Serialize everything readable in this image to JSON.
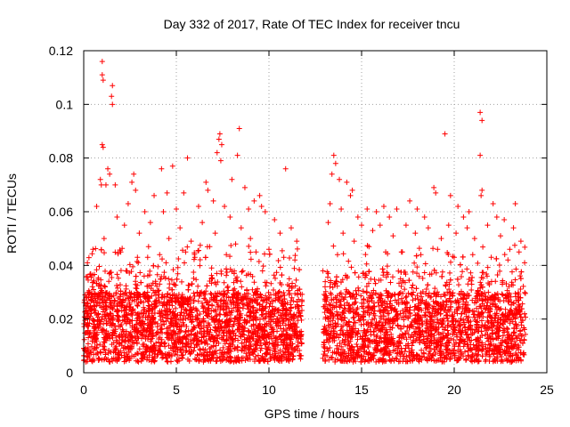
{
  "chart_data": {
    "type": "scatter",
    "title": "Day 332 of 2017, Rate Of TEC Index for receiver tncu",
    "xlabel": "GPS time / hours",
    "ylabel": "ROTI / TECUs",
    "xlim": [
      0,
      25
    ],
    "ylim": [
      0,
      0.12
    ],
    "xticks": [
      0,
      5,
      10,
      15,
      20,
      25
    ],
    "xtick_labels": [
      "0",
      "5",
      "10",
      "15",
      "20",
      "25"
    ],
    "yticks": [
      0,
      0.02,
      0.04,
      0.06,
      0.08,
      0.1,
      0.12
    ],
    "ytick_labels": [
      "0",
      "0.02",
      "0.04",
      "0.06",
      "0.08",
      "0.1",
      "0.12"
    ],
    "grid": true,
    "marker": "+",
    "color": "#ff0000",
    "data_gap_hours": [
      11.8,
      12.9
    ],
    "points": [
      [
        1.0,
        0.116
      ],
      [
        1.0,
        0.111
      ],
      [
        1.05,
        0.109
      ],
      [
        1.55,
        0.107
      ],
      [
        1.5,
        0.103
      ],
      [
        1.55,
        0.1
      ],
      [
        1.0,
        0.085
      ],
      [
        1.05,
        0.084
      ],
      [
        7.35,
        0.089
      ],
      [
        7.3,
        0.087
      ],
      [
        8.4,
        0.091
      ],
      [
        7.45,
        0.085
      ],
      [
        7.2,
        0.082
      ],
      [
        7.4,
        0.079
      ],
      [
        8.3,
        0.081
      ],
      [
        5.6,
        0.08
      ],
      [
        4.2,
        0.076
      ],
      [
        4.8,
        0.077
      ],
      [
        10.9,
        0.076
      ],
      [
        1.3,
        0.076
      ],
      [
        1.4,
        0.074
      ],
      [
        2.7,
        0.074
      ],
      [
        2.6,
        0.071
      ],
      [
        1.2,
        0.07
      ],
      [
        0.9,
        0.072
      ],
      [
        0.95,
        0.07
      ],
      [
        1.7,
        0.07
      ],
      [
        2.8,
        0.068
      ],
      [
        6.6,
        0.071
      ],
      [
        6.7,
        0.068
      ],
      [
        8.0,
        0.072
      ],
      [
        8.7,
        0.069
      ],
      [
        9.5,
        0.066
      ],
      [
        9.6,
        0.062
      ],
      [
        9.2,
        0.064
      ],
      [
        3.8,
        0.066
      ],
      [
        4.5,
        0.067
      ],
      [
        5.4,
        0.067
      ],
      [
        7.0,
        0.064
      ],
      [
        7.6,
        0.062
      ],
      [
        2.4,
        0.063
      ],
      [
        0.7,
        0.062
      ],
      [
        3.3,
        0.06
      ],
      [
        4.3,
        0.06
      ],
      [
        5.0,
        0.061
      ],
      [
        6.2,
        0.062
      ],
      [
        8.9,
        0.061
      ],
      [
        9.8,
        0.06
      ],
      [
        1.8,
        0.058
      ],
      [
        2.2,
        0.055
      ],
      [
        3.0,
        0.052
      ],
      [
        3.6,
        0.056
      ],
      [
        4.6,
        0.05
      ],
      [
        5.2,
        0.054
      ],
      [
        5.8,
        0.049
      ],
      [
        6.4,
        0.056
      ],
      [
        7.1,
        0.052
      ],
      [
        7.9,
        0.058
      ],
      [
        8.5,
        0.054
      ],
      [
        9.0,
        0.05
      ],
      [
        10.3,
        0.057
      ],
      [
        10.6,
        0.052
      ],
      [
        11.2,
        0.054
      ],
      [
        11.5,
        0.049
      ],
      [
        0.2,
        0.041
      ],
      [
        0.5,
        0.046
      ],
      [
        1.1,
        0.05
      ],
      [
        2.0,
        0.045
      ],
      [
        2.9,
        0.043
      ],
      [
        3.5,
        0.047
      ],
      [
        4.1,
        0.044
      ],
      [
        5.5,
        0.045
      ],
      [
        6.0,
        0.043
      ],
      [
        6.8,
        0.047
      ],
      [
        7.7,
        0.044
      ],
      [
        8.2,
        0.048
      ],
      [
        9.3,
        0.045
      ],
      [
        10.0,
        0.046
      ],
      [
        10.8,
        0.043
      ],
      [
        11.4,
        0.042
      ],
      [
        13.5,
        0.081
      ],
      [
        13.6,
        0.078
      ],
      [
        13.4,
        0.074
      ],
      [
        13.8,
        0.072
      ],
      [
        14.2,
        0.071
      ],
      [
        14.5,
        0.068
      ],
      [
        14.4,
        0.066
      ],
      [
        13.3,
        0.063
      ],
      [
        13.9,
        0.061
      ],
      [
        15.3,
        0.061
      ],
      [
        15.8,
        0.06
      ],
      [
        16.2,
        0.062
      ],
      [
        16.5,
        0.058
      ],
      [
        16.9,
        0.061
      ],
      [
        14.8,
        0.058
      ],
      [
        15.0,
        0.055
      ],
      [
        15.6,
        0.053
      ],
      [
        16.0,
        0.055
      ],
      [
        16.7,
        0.051
      ],
      [
        13.2,
        0.056
      ],
      [
        14.0,
        0.052
      ],
      [
        14.6,
        0.049
      ],
      [
        15.4,
        0.047
      ],
      [
        16.3,
        0.045
      ],
      [
        13.7,
        0.044
      ],
      [
        17.6,
        0.064
      ],
      [
        18.0,
        0.061
      ],
      [
        18.4,
        0.058
      ],
      [
        18.9,
        0.069
      ],
      [
        19.0,
        0.067
      ],
      [
        19.5,
        0.089
      ],
      [
        19.8,
        0.066
      ],
      [
        20.2,
        0.062
      ],
      [
        20.5,
        0.058
      ],
      [
        20.8,
        0.06
      ],
      [
        21.4,
        0.097
      ],
      [
        21.5,
        0.094
      ],
      [
        21.4,
        0.081
      ],
      [
        21.5,
        0.068
      ],
      [
        21.45,
        0.066
      ],
      [
        22.1,
        0.063
      ],
      [
        22.3,
        0.058
      ],
      [
        22.7,
        0.057
      ],
      [
        23.3,
        0.063
      ],
      [
        23.2,
        0.054
      ],
      [
        23.6,
        0.049
      ],
      [
        17.4,
        0.055
      ],
      [
        17.9,
        0.052
      ],
      [
        18.6,
        0.054
      ],
      [
        19.3,
        0.05
      ],
      [
        19.7,
        0.055
      ],
      [
        20.1,
        0.052
      ],
      [
        20.7,
        0.054
      ],
      [
        21.1,
        0.05
      ],
      [
        21.8,
        0.055
      ],
      [
        22.5,
        0.051
      ],
      [
        23.0,
        0.046
      ],
      [
        23.5,
        0.045
      ],
      [
        17.2,
        0.045
      ],
      [
        18.2,
        0.044
      ],
      [
        19.1,
        0.046
      ],
      [
        20.0,
        0.043
      ],
      [
        21.0,
        0.044
      ],
      [
        22.0,
        0.043
      ],
      [
        22.9,
        0.042
      ],
      [
        23.8,
        0.041
      ]
    ]
  }
}
